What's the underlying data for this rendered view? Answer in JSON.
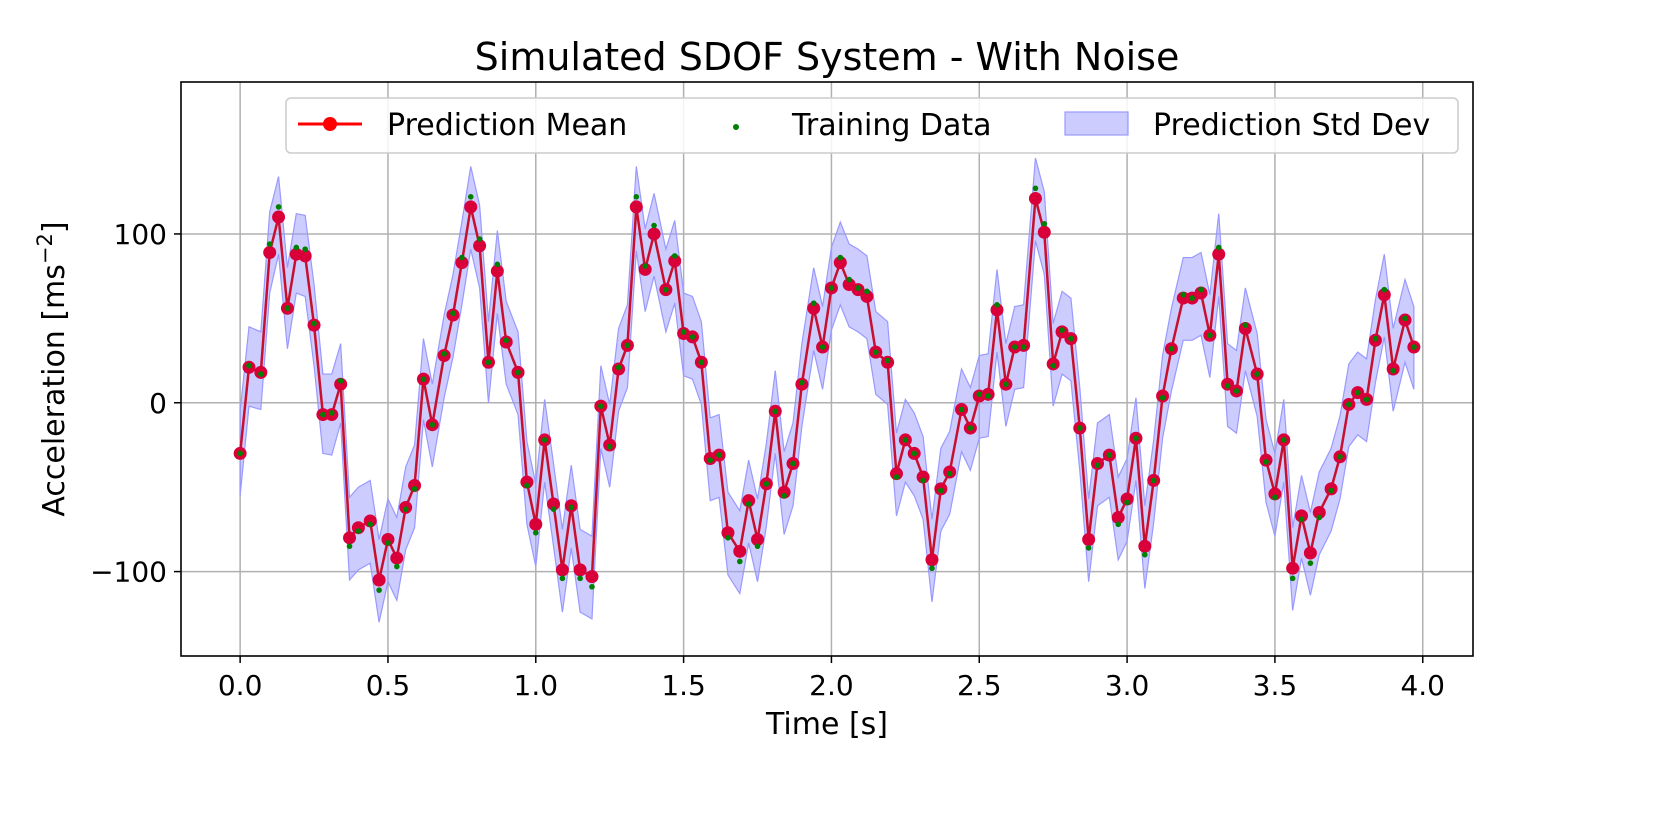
{
  "chart_data": {
    "type": "line",
    "title": "Simulated SDOF System - With Noise",
    "xlabel": "Time [s]",
    "ylabel_base": "Acceleration [ms",
    "ylabel_sup": "−2",
    "ylabel_end": "]",
    "xlim": [
      -0.2,
      4.17
    ],
    "ylim": [
      -150,
      190
    ],
    "xticks": [
      0.0,
      0.5,
      1.0,
      1.5,
      2.0,
      2.5,
      3.0,
      3.5,
      4.0
    ],
    "xtick_labels": [
      "0.0",
      "0.5",
      "1.0",
      "1.5",
      "2.0",
      "2.5",
      "3.0",
      "3.5",
      "4.0"
    ],
    "yticks": [
      -100,
      0,
      100
    ],
    "ytick_labels": [
      "−100",
      "0",
      "100"
    ],
    "grid": true,
    "legend_position": "top",
    "colors": {
      "mean": "#d9003a",
      "mean_line": "#c8102e",
      "training": "#008000",
      "band": "#9999ff"
    },
    "legend": [
      {
        "label": "Prediction Mean"
      },
      {
        "label": "Training Data"
      },
      {
        "label": "Prediction Std Dev"
      }
    ],
    "series": [
      {
        "name": "Prediction Mean",
        "x": [
          0.0,
          0.03,
          0.07,
          0.1,
          0.13,
          0.16,
          0.19,
          0.22,
          0.25,
          0.28,
          0.31,
          0.34,
          0.37,
          0.4,
          0.44,
          0.47,
          0.5,
          0.53,
          0.56,
          0.59,
          0.62,
          0.65,
          0.69,
          0.72,
          0.75,
          0.78,
          0.81,
          0.84,
          0.87,
          0.9,
          0.94,
          0.97,
          1.0,
          1.03,
          1.06,
          1.09,
          1.12,
          1.15,
          1.19,
          1.22,
          1.25,
          1.28,
          1.31,
          1.34,
          1.37,
          1.4,
          1.44,
          1.47,
          1.5,
          1.53,
          1.56,
          1.59,
          1.62,
          1.65,
          1.69,
          1.72,
          1.75,
          1.78,
          1.81,
          1.84,
          1.87,
          1.9,
          1.94,
          1.97,
          2.0,
          2.03,
          2.06,
          2.09,
          2.12,
          2.15,
          2.19,
          2.22,
          2.25,
          2.28,
          2.31,
          2.34,
          2.37,
          2.4,
          2.44,
          2.47,
          2.5,
          2.53,
          2.56,
          2.59,
          2.62,
          2.65,
          2.69,
          2.72,
          2.75,
          2.78,
          2.81,
          2.84,
          2.87,
          2.9,
          2.94,
          2.97,
          3.0,
          3.03,
          3.06,
          3.09,
          3.12,
          3.15,
          3.19,
          3.22,
          3.25,
          3.28,
          3.31,
          3.34,
          3.37,
          3.4,
          3.44,
          3.47,
          3.5,
          3.53,
          3.56,
          3.59,
          3.62,
          3.65,
          3.69,
          3.72,
          3.75,
          3.78,
          3.81,
          3.84,
          3.87,
          3.9,
          3.94,
          3.97
        ],
        "y": [
          -30,
          21,
          18,
          89,
          110,
          56,
          88,
          87,
          46,
          -7,
          -7,
          11,
          -80,
          -74,
          -70,
          -105,
          -81,
          -92,
          -62,
          -49,
          14,
          -13,
          28,
          52,
          83,
          116,
          93,
          24,
          78,
          36,
          18,
          -47,
          -72,
          -22,
          -60,
          -99,
          -61,
          -99,
          -103,
          -2,
          -25,
          20,
          34,
          116,
          79,
          100,
          67,
          84,
          41,
          39,
          24,
          -33,
          -31,
          -77,
          -88,
          -58,
          -81,
          -48,
          -5,
          -53,
          -36,
          11,
          56,
          33,
          68,
          83,
          70,
          67,
          63,
          30,
          24,
          -42,
          -22,
          -30,
          -44,
          -93,
          -51,
          -41,
          -4,
          -15,
          4,
          5,
          55,
          11,
          33,
          34,
          121,
          101,
          23,
          42,
          38,
          -15,
          -81,
          -36,
          -31,
          -68,
          -57,
          -21,
          -85,
          -46,
          4,
          32,
          62,
          62,
          65,
          40,
          88,
          11,
          7,
          44,
          17,
          -34,
          -54,
          -22,
          -98,
          -67,
          -89,
          -65,
          -51,
          -32,
          -1,
          6,
          2,
          37,
          64,
          20,
          49,
          33
        ]
      },
      {
        "name": "Training Data",
        "x": [
          0.0,
          0.03,
          0.07,
          0.1,
          0.13,
          0.16,
          0.19,
          0.22,
          0.25,
          0.28,
          0.31,
          0.34,
          0.37,
          0.4,
          0.44,
          0.47,
          0.5,
          0.53,
          0.56,
          0.59,
          0.62,
          0.65,
          0.69,
          0.72,
          0.75,
          0.78,
          0.81,
          0.84,
          0.87,
          0.9,
          0.94,
          0.97,
          1.0,
          1.03,
          1.06,
          1.09,
          1.12,
          1.15,
          1.19,
          1.22,
          1.25,
          1.28,
          1.31,
          1.34,
          1.37,
          1.4,
          1.44,
          1.47,
          1.5,
          1.53,
          1.56,
          1.59,
          1.62,
          1.65,
          1.69,
          1.72,
          1.75,
          1.78,
          1.81,
          1.84,
          1.87,
          1.9,
          1.94,
          1.97,
          2.0,
          2.03,
          2.06,
          2.09,
          2.12,
          2.15,
          2.19,
          2.22,
          2.25,
          2.28,
          2.31,
          2.34,
          2.37,
          2.4,
          2.44,
          2.47,
          2.5,
          2.53,
          2.56,
          2.59,
          2.62,
          2.65,
          2.69,
          2.72,
          2.75,
          2.78,
          2.81,
          2.84,
          2.87,
          2.9,
          2.94,
          2.97,
          3.0,
          3.03,
          3.06,
          3.09,
          3.12,
          3.15,
          3.19,
          3.22,
          3.25,
          3.28,
          3.31,
          3.34,
          3.37,
          3.4,
          3.44,
          3.47,
          3.5,
          3.53,
          3.56,
          3.59,
          3.62,
          3.65,
          3.69,
          3.72,
          3.75,
          3.78,
          3.81,
          3.84,
          3.87,
          3.9,
          3.94,
          3.97
        ],
        "y": [
          -30,
          22,
          17,
          94,
          116,
          56,
          92,
          91,
          47,
          -7,
          -6,
          13,
          -85,
          -76,
          -72,
          -111,
          -83,
          -97,
          -63,
          -51,
          14,
          -13,
          29,
          53,
          86,
          122,
          97,
          24,
          82,
          37,
          18,
          -49,
          -77,
          -22,
          -63,
          -104,
          -62,
          -104,
          -109,
          -2,
          -26,
          21,
          34,
          122,
          81,
          105,
          67,
          87,
          42,
          39,
          24,
          -34,
          -31,
          -80,
          -94,
          -60,
          -85,
          -48,
          -5,
          -55,
          -36,
          12,
          59,
          33,
          68,
          86,
          73,
          68,
          66,
          30,
          25,
          -44,
          -22,
          -30,
          -46,
          -98,
          -52,
          -42,
          -4,
          -15,
          5,
          4,
          58,
          11,
          33,
          33,
          127,
          106,
          22,
          43,
          38,
          -15,
          -86,
          -37,
          -31,
          -72,
          -59,
          -21,
          -90,
          -46,
          3,
          32,
          64,
          62,
          67,
          40,
          92,
          10,
          7,
          46,
          17,
          -35,
          -56,
          -22,
          -104,
          -69,
          -95,
          -68,
          -52,
          -32,
          -1,
          6,
          2,
          38,
          67,
          19,
          50,
          33
        ]
      },
      {
        "name": "Prediction Std Dev",
        "x": [
          0.0,
          0.03,
          0.07,
          0.1,
          0.13,
          0.16,
          0.19,
          0.22,
          0.25,
          0.28,
          0.31,
          0.34,
          0.37,
          0.4,
          0.44,
          0.47,
          0.5,
          0.53,
          0.56,
          0.59,
          0.62,
          0.65,
          0.69,
          0.72,
          0.75,
          0.78,
          0.81,
          0.84,
          0.87,
          0.9,
          0.94,
          0.97,
          1.0,
          1.03,
          1.06,
          1.09,
          1.12,
          1.15,
          1.19,
          1.22,
          1.25,
          1.28,
          1.31,
          1.34,
          1.37,
          1.4,
          1.44,
          1.47,
          1.5,
          1.53,
          1.56,
          1.59,
          1.62,
          1.65,
          1.69,
          1.72,
          1.75,
          1.78,
          1.81,
          1.84,
          1.87,
          1.9,
          1.94,
          1.97,
          2.0,
          2.03,
          2.06,
          2.09,
          2.12,
          2.15,
          2.19,
          2.22,
          2.25,
          2.28,
          2.31,
          2.34,
          2.37,
          2.4,
          2.44,
          2.47,
          2.5,
          2.53,
          2.56,
          2.59,
          2.62,
          2.65,
          2.69,
          2.72,
          2.75,
          2.78,
          2.81,
          2.84,
          2.87,
          2.9,
          2.94,
          2.97,
          3.0,
          3.03,
          3.06,
          3.09,
          3.12,
          3.15,
          3.19,
          3.22,
          3.25,
          3.28,
          3.31,
          3.34,
          3.37,
          3.4,
          3.44,
          3.47,
          3.5,
          3.53,
          3.56,
          3.59,
          3.62,
          3.65,
          3.69,
          3.72,
          3.75,
          3.78,
          3.81,
          3.84,
          3.87,
          3.9,
          3.94,
          3.97
        ],
        "lower": [
          -55,
          -2,
          -4,
          65,
          88,
          32,
          65,
          63,
          22,
          -30,
          -31,
          -12,
          -105,
          -99,
          -95,
          -130,
          -106,
          -117,
          -87,
          -74,
          -10,
          -38,
          3,
          27,
          58,
          91,
          68,
          0,
          53,
          11,
          -7,
          -72,
          -97,
          -47,
          -85,
          -124,
          -86,
          -124,
          -128,
          -27,
          -50,
          -5,
          9,
          90,
          54,
          75,
          42,
          59,
          16,
          14,
          -1,
          -58,
          -56,
          -102,
          -113,
          -83,
          -106,
          -73,
          -30,
          -78,
          -61,
          -14,
          31,
          8,
          43,
          58,
          45,
          42,
          38,
          5,
          -1,
          -67,
          -47,
          -55,
          -69,
          -118,
          -76,
          -66,
          -29,
          -40,
          -21,
          -20,
          30,
          -14,
          8,
          9,
          96,
          76,
          -2,
          17,
          13,
          -40,
          -106,
          -61,
          -56,
          -93,
          -82,
          -46,
          -110,
          -71,
          -21,
          7,
          37,
          37,
          40,
          15,
          63,
          -14,
          -18,
          19,
          -8,
          -59,
          -79,
          -47,
          -123,
          -92,
          -114,
          -90,
          -76,
          -57,
          -26,
          -19,
          -23,
          12,
          39,
          -5,
          24,
          8
        ],
        "upper": [
          -5,
          45,
          42,
          113,
          134,
          80,
          112,
          111,
          70,
          17,
          17,
          35,
          -56,
          -50,
          -46,
          -81,
          -57,
          -68,
          -38,
          -25,
          38,
          11,
          52,
          76,
          107,
          140,
          117,
          48,
          102,
          60,
          42,
          -23,
          -48,
          2,
          -36,
          -75,
          -37,
          -75,
          -79,
          22,
          -1,
          44,
          58,
          140,
          103,
          124,
          91,
          108,
          65,
          63,
          48,
          -9,
          -7,
          -53,
          -64,
          -34,
          -57,
          -24,
          19,
          -29,
          -12,
          35,
          80,
          57,
          92,
          107,
          94,
          91,
          87,
          54,
          48,
          -18,
          2,
          -6,
          -20,
          -69,
          -27,
          -17,
          20,
          9,
          28,
          29,
          79,
          35,
          57,
          58,
          145,
          125,
          47,
          66,
          62,
          9,
          -57,
          -12,
          -7,
          -44,
          -33,
          3,
          -61,
          -22,
          28,
          56,
          86,
          86,
          89,
          64,
          112,
          35,
          31,
          68,
          41,
          -10,
          -30,
          2,
          -74,
          -43,
          -65,
          -41,
          -27,
          -8,
          23,
          30,
          26,
          61,
          88,
          44,
          73,
          57
        ]
      }
    ]
  }
}
